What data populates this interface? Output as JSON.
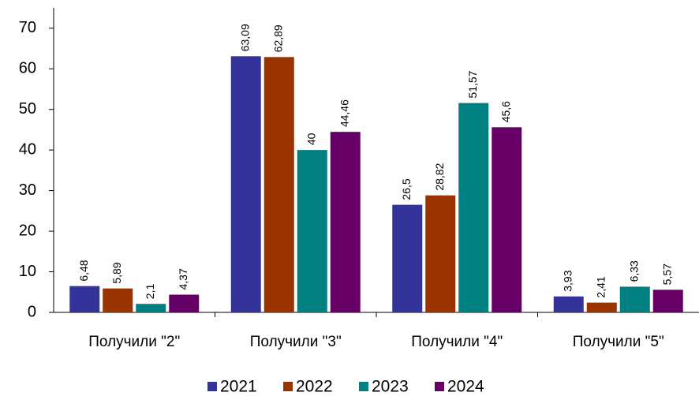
{
  "chart_data": {
    "type": "bar",
    "categories": [
      "Получили \"2\"",
      "Получили \"3\"",
      "Получили \"4\"",
      "Получили \"5\""
    ],
    "series": [
      {
        "name": "2021",
        "color": "#333399",
        "values": [
          6.48,
          63.09,
          26.5,
          3.93
        ],
        "value_labels": [
          "6,48",
          "63,09",
          "26,5",
          "3,93"
        ]
      },
      {
        "name": "2022",
        "color": "#993300",
        "values": [
          5.89,
          62.89,
          28.82,
          2.41
        ],
        "value_labels": [
          "5,89",
          "62,89",
          "28,82",
          "2,41"
        ]
      },
      {
        "name": "2023",
        "color": "#008080",
        "values": [
          2.1,
          40,
          51.57,
          6.33
        ],
        "value_labels": [
          "2,1",
          "40",
          "51,57",
          "6,33"
        ]
      },
      {
        "name": "2024",
        "color": "#660066",
        "values": [
          4.37,
          44.46,
          45.6,
          5.57
        ],
        "value_labels": [
          "4,37",
          "44,46",
          "45,6",
          "5,57"
        ]
      }
    ],
    "ylim": [
      0,
      75
    ],
    "yticks": [
      0,
      10,
      20,
      30,
      40,
      50,
      60,
      70
    ],
    "grid": false,
    "legend": "bottom"
  }
}
